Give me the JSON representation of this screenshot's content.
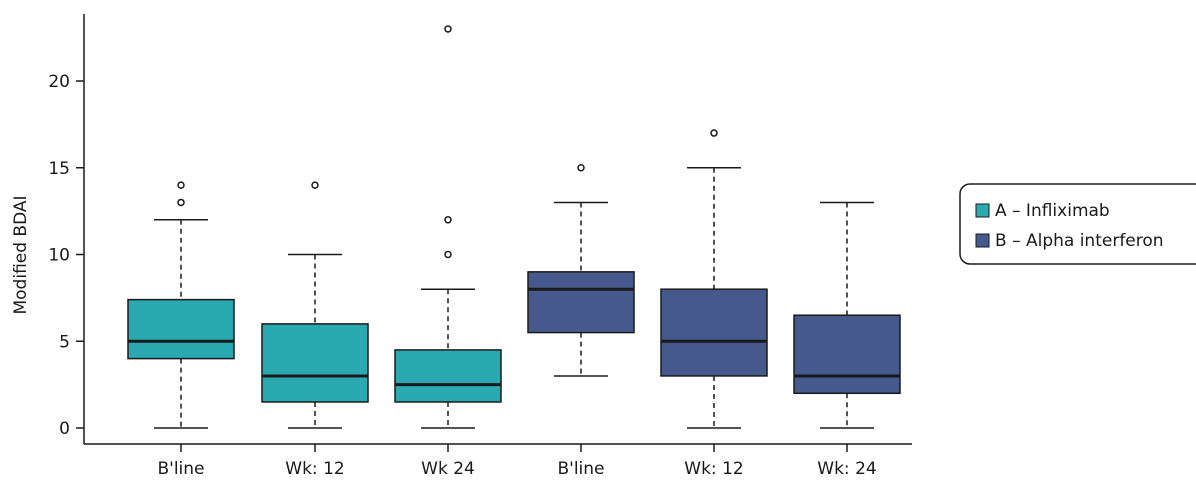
{
  "chart_data": {
    "type": "boxplot",
    "title": "",
    "xlabel": "",
    "ylabel": "Modified BDAI",
    "ylim": [
      -1,
      24
    ],
    "yticks": [
      0,
      5,
      10,
      15,
      20
    ],
    "grid": false,
    "legend_position": "right",
    "categories": [
      "B'line",
      "Wk: 12",
      "Wk 24",
      "B'line",
      "Wk: 12",
      "Wk: 24"
    ],
    "series": [
      {
        "name": "A – Infliximab",
        "color": "#2aa9b0",
        "boxes": [
          {
            "category": "B'line",
            "whisker_low": 0,
            "q1": 4,
            "median": 5,
            "q3": 7.4,
            "whisker_high": 12,
            "outliers": [
              13,
              14
            ]
          },
          {
            "category": "Wk: 12",
            "whisker_low": 0,
            "q1": 1.5,
            "median": 3,
            "q3": 6,
            "whisker_high": 10,
            "outliers": [
              14
            ]
          },
          {
            "category": "Wk 24",
            "whisker_low": 0,
            "q1": 1.5,
            "median": 2.5,
            "q3": 4.5,
            "whisker_high": 8,
            "outliers": [
              10,
              12,
              23
            ]
          }
        ]
      },
      {
        "name": "B – Alpha interferon",
        "color": "#46598c",
        "boxes": [
          {
            "category": "B'line",
            "whisker_low": 3,
            "q1": 5.5,
            "median": 8,
            "q3": 9,
            "whisker_high": 13,
            "outliers": [
              15
            ]
          },
          {
            "category": "Wk: 12",
            "whisker_low": 0,
            "q1": 3,
            "median": 5,
            "q3": 8,
            "whisker_high": 15,
            "outliers": [
              17
            ]
          },
          {
            "category": "Wk: 24",
            "whisker_low": 0,
            "q1": 2,
            "median": 3,
            "q3": 6.5,
            "whisker_high": 13,
            "outliers": []
          }
        ]
      }
    ]
  }
}
